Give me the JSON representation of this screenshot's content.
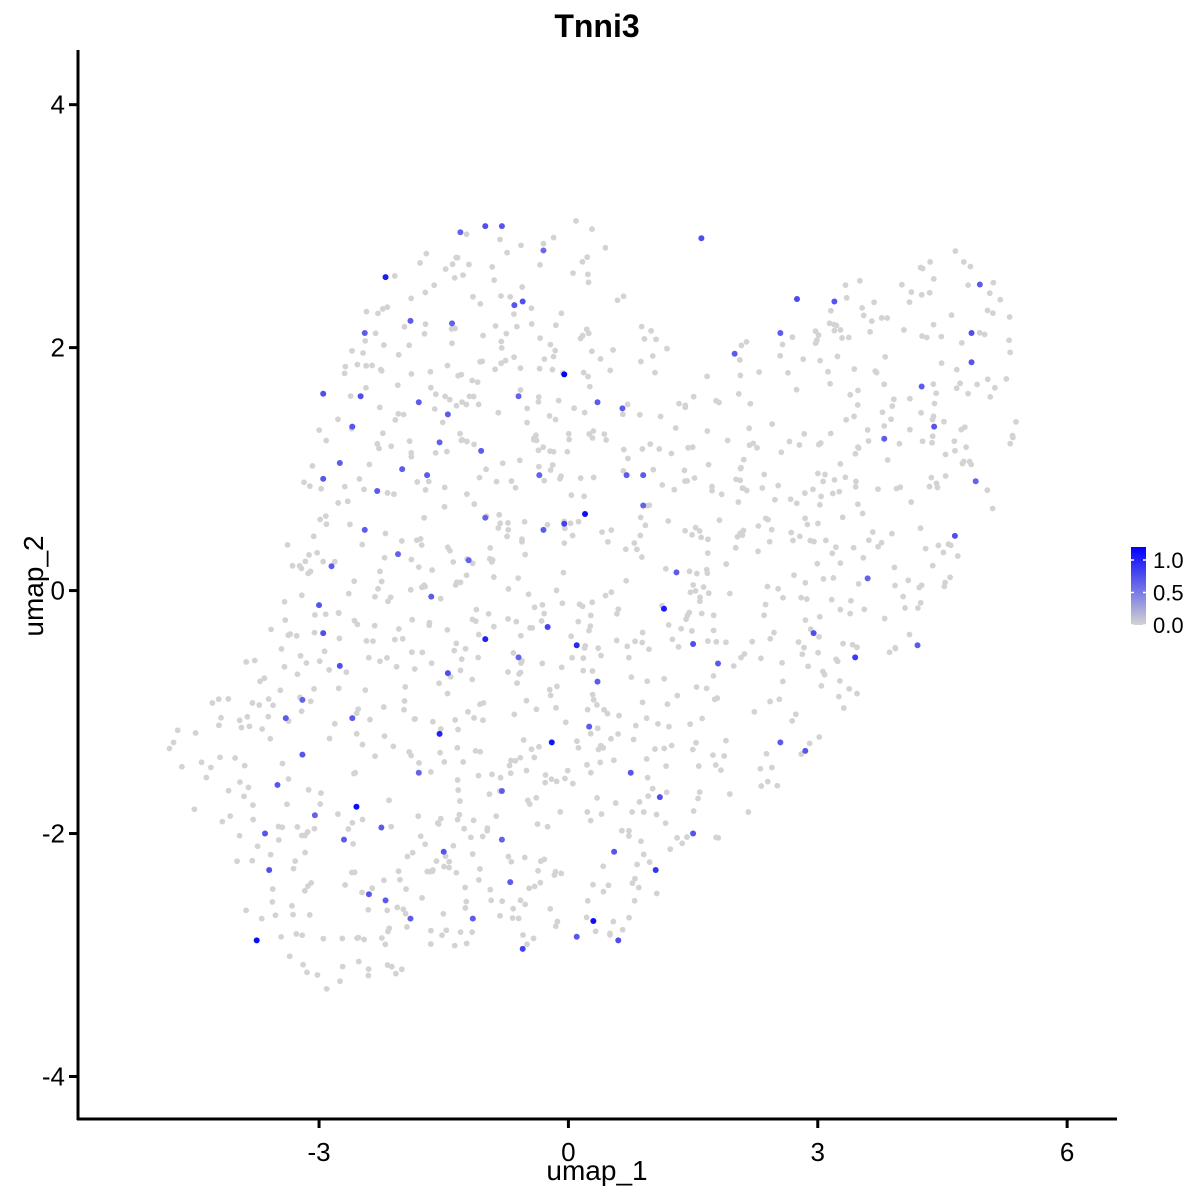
{
  "chart_data": {
    "type": "scatter",
    "title": "Tnni3",
    "xlabel": "umap_1",
    "ylabel": "umap_2",
    "xlim": [
      -5.9,
      6.6
    ],
    "ylim": [
      -4.35,
      4.45
    ],
    "x_ticks": [
      -3,
      0,
      3,
      6
    ],
    "y_ticks": [
      -4,
      -2,
      0,
      2,
      4
    ],
    "x_tick_labels": [
      "-3",
      "0",
      "3",
      "6"
    ],
    "y_tick_labels": [
      "-4",
      "-2",
      "0",
      "2",
      "4"
    ],
    "grid": false,
    "legend": {
      "placement": "right",
      "type": "colorbar",
      "labels": [
        "1.0",
        "0.5",
        "0.0"
      ],
      "values": [
        1.0,
        0.5,
        0.0
      ],
      "range": [
        0,
        1.2
      ]
    },
    "color_scale": {
      "low": "#d3d3d3",
      "high": "#0000ff"
    },
    "value_range": [
      0,
      1.2
    ],
    "points_high": [
      [
        -2.2,
        2.58,
        1.0
      ],
      [
        -1.9,
        2.22,
        0.5
      ],
      [
        -1.4,
        2.2,
        0.45
      ],
      [
        -0.55,
        2.38,
        0.6
      ],
      [
        -0.8,
        3.0,
        0.55
      ],
      [
        -1.0,
        3.0,
        0.6
      ],
      [
        -0.3,
        2.8,
        0.4
      ],
      [
        -0.65,
        2.35,
        0.55
      ],
      [
        -0.05,
        1.78,
        1.2
      ],
      [
        -2.45,
        2.12,
        0.5
      ],
      [
        -2.95,
        1.62,
        0.6
      ],
      [
        -2.75,
        1.05,
        0.5
      ],
      [
        -2.5,
        1.6,
        0.6
      ],
      [
        -2.6,
        1.35,
        0.55
      ],
      [
        -2.3,
        0.82,
        0.5
      ],
      [
        -2.95,
        0.92,
        0.55
      ],
      [
        -2.85,
        0.2,
        0.5
      ],
      [
        -2.45,
        0.5,
        0.5
      ],
      [
        -1.3,
        2.95,
        0.45
      ],
      [
        -1.8,
        1.55,
        0.5
      ],
      [
        -1.55,
        1.22,
        0.45
      ],
      [
        -1.45,
        1.45,
        0.5
      ],
      [
        -1.05,
        1.15,
        0.5
      ],
      [
        -0.6,
        1.6,
        0.45
      ],
      [
        0.2,
        0.63,
        1.1
      ],
      [
        -0.05,
        0.55,
        0.7
      ],
      [
        -0.3,
        0.5,
        0.5
      ],
      [
        -1.0,
        0.6,
        0.45
      ],
      [
        -1.0,
        -0.4,
        0.95
      ],
      [
        -1.45,
        -0.68,
        0.6
      ],
      [
        -0.25,
        -0.3,
        0.7
      ],
      [
        0.1,
        -0.45,
        0.9
      ],
      [
        1.15,
        -0.15,
        1.0
      ],
      [
        1.5,
        -0.44,
        0.6
      ],
      [
        -2.75,
        -0.62,
        0.6
      ],
      [
        -3.0,
        -0.12,
        0.55
      ],
      [
        -2.95,
        -0.35,
        0.6
      ],
      [
        -1.55,
        -1.18,
        0.95
      ],
      [
        -2.6,
        -1.05,
        0.5
      ],
      [
        -2.55,
        -1.78,
        1.1
      ],
      [
        -3.2,
        -1.35,
        0.55
      ],
      [
        -3.5,
        -1.6,
        0.55
      ],
      [
        -3.75,
        -2.88,
        1.1
      ],
      [
        -3.6,
        -2.3,
        0.6
      ],
      [
        -3.65,
        -2.0,
        0.55
      ],
      [
        -2.4,
        -2.5,
        0.55
      ],
      [
        -2.7,
        -2.05,
        0.5
      ],
      [
        -2.2,
        -2.55,
        0.5
      ],
      [
        -1.5,
        -2.15,
        0.55
      ],
      [
        -1.15,
        -2.7,
        0.5
      ],
      [
        -0.7,
        -2.4,
        0.5
      ],
      [
        -0.55,
        -2.95,
        0.7
      ],
      [
        0.3,
        -2.72,
        1.1
      ],
      [
        0.6,
        -2.88,
        0.6
      ],
      [
        0.1,
        -2.85,
        0.55
      ],
      [
        -0.2,
        -1.25,
        1.05
      ],
      [
        0.25,
        -1.12,
        0.5
      ],
      [
        0.75,
        -1.5,
        0.55
      ],
      [
        1.1,
        -1.7,
        0.6
      ],
      [
        1.05,
        -2.3,
        0.8
      ],
      [
        1.5,
        -2.0,
        0.55
      ],
      [
        0.55,
        -2.15,
        0.55
      ],
      [
        1.6,
        2.9,
        0.6
      ],
      [
        2.75,
        2.4,
        0.65
      ],
      [
        2.55,
        2.12,
        0.5
      ],
      [
        3.2,
        2.38,
        0.55
      ],
      [
        4.85,
        2.12,
        0.6
      ],
      [
        4.85,
        1.88,
        0.55
      ],
      [
        4.95,
        2.52,
        0.5
      ],
      [
        4.25,
        1.68,
        0.5
      ],
      [
        4.4,
        1.35,
        0.55
      ],
      [
        3.8,
        1.25,
        0.5
      ],
      [
        4.65,
        0.45,
        0.6
      ],
      [
        4.9,
        0.9,
        0.45
      ],
      [
        3.45,
        -0.55,
        0.75
      ],
      [
        2.95,
        -0.35,
        0.6
      ],
      [
        2.85,
        -1.32,
        0.55
      ],
      [
        2.55,
        -1.25,
        0.5
      ],
      [
        0.7,
        0.95,
        0.5
      ],
      [
        0.9,
        0.7,
        0.45
      ],
      [
        2.0,
        1.95,
        0.5
      ],
      [
        3.6,
        0.1,
        0.45
      ],
      [
        4.2,
        -0.45,
        0.5
      ],
      [
        1.8,
        -0.6,
        0.5
      ],
      [
        0.9,
        0.95,
        0.5
      ],
      [
        -1.2,
        0.25,
        0.45
      ],
      [
        -2.0,
        1.0,
        0.5
      ],
      [
        -1.7,
        0.95,
        0.5
      ],
      [
        0.35,
        1.55,
        0.5
      ],
      [
        0.65,
        1.5,
        0.5
      ],
      [
        -0.35,
        0.95,
        0.45
      ],
      [
        1.3,
        0.15,
        0.5
      ],
      [
        -1.65,
        -0.05,
        0.5
      ],
      [
        -2.05,
        0.3,
        0.45
      ],
      [
        -0.6,
        -0.55,
        0.45
      ],
      [
        0.35,
        -0.75,
        0.5
      ],
      [
        -0.8,
        -1.65,
        0.5
      ],
      [
        -1.8,
        -1.5,
        0.45
      ],
      [
        -3.2,
        -0.9,
        0.45
      ],
      [
        -3.4,
        -1.05,
        0.5
      ],
      [
        -2.25,
        -1.95,
        0.5
      ],
      [
        -3.05,
        -1.85,
        0.45
      ],
      [
        -1.9,
        -2.7,
        0.5
      ],
      [
        -0.8,
        -2.05,
        0.45
      ]
    ],
    "point_seed": 3
  }
}
